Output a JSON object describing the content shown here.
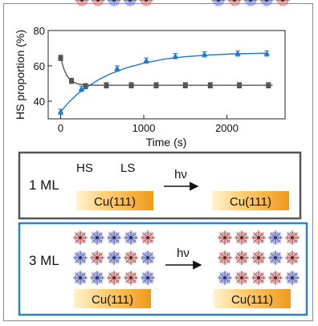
{
  "chart_data": {
    "type": "scatter",
    "xlabel": "Time (s)",
    "ylabel": "HS proportion (%)",
    "xticks": [
      "0",
      "1000",
      "2000"
    ],
    "yticks": [
      "40",
      "60",
      "80"
    ],
    "xlim": [
      -150,
      2700
    ],
    "ylim": [
      30,
      80
    ],
    "series": [
      {
        "name": "",
        "color": "#555555",
        "marker": "square",
        "points": [
          {
            "x": 0,
            "y": 64.5,
            "err": 1.5
          },
          {
            "x": 130,
            "y": 51.5,
            "err": 1.5
          },
          {
            "x": 300,
            "y": 48.5,
            "err": 1.5
          },
          {
            "x": 550,
            "y": 49,
            "err": 1.5
          },
          {
            "x": 850,
            "y": 49,
            "err": 1.5
          },
          {
            "x": 1150,
            "y": 49,
            "err": 1.5
          },
          {
            "x": 1500,
            "y": 49,
            "err": 1.5
          },
          {
            "x": 1800,
            "y": 49,
            "err": 1.5
          },
          {
            "x": 2150,
            "y": 49,
            "err": 1.5
          },
          {
            "x": 2500,
            "y": 49,
            "err": 1.5
          }
        ],
        "fit": [
          [
            0,
            64.5
          ],
          [
            40,
            58
          ],
          [
            80,
            54
          ],
          [
            130,
            51.5
          ],
          [
            200,
            49.8
          ],
          [
            300,
            49.1
          ],
          [
            500,
            49
          ],
          [
            2550,
            49
          ]
        ]
      },
      {
        "name": "",
        "color": "#1f77d0",
        "marker": "triangle",
        "points": [
          {
            "x": 0,
            "y": 34,
            "err": 1.5
          },
          {
            "x": 250,
            "y": 47,
            "err": 1.5
          },
          {
            "x": 680,
            "y": 58.5,
            "err": 1.5
          },
          {
            "x": 1030,
            "y": 63,
            "err": 1.5
          },
          {
            "x": 1380,
            "y": 65.5,
            "err": 1.5
          },
          {
            "x": 1730,
            "y": 66.5,
            "err": 1.5
          },
          {
            "x": 2130,
            "y": 67,
            "err": 1.5
          },
          {
            "x": 2480,
            "y": 67,
            "err": 1.5
          }
        ],
        "fit": [
          [
            0,
            34
          ],
          [
            100,
            39.5
          ],
          [
            200,
            44
          ],
          [
            300,
            47.5
          ],
          [
            450,
            52
          ],
          [
            600,
            55.5
          ],
          [
            800,
            59
          ],
          [
            1000,
            61.5
          ],
          [
            1250,
            63.8
          ],
          [
            1500,
            65.2
          ],
          [
            1800,
            66.2
          ],
          [
            2100,
            66.8
          ],
          [
            2500,
            67.2
          ]
        ]
      }
    ]
  },
  "panels": {
    "one_ml": {
      "layer_label": "1 ML",
      "hs_label": "HS",
      "ls_label": "LS",
      "arrow_label": "hν",
      "substrate_label": "Cu(111)",
      "frame_color": "#555555",
      "before_spins": [
        [
          "HS",
          "HS",
          "LS",
          "LS",
          "HS"
        ]
      ],
      "after_spins": [
        [
          "LS",
          "HS",
          "LS",
          "LS",
          "HS"
        ]
      ]
    },
    "three_ml": {
      "layer_label": "3 ML",
      "arrow_label": "hν",
      "substrate_label": "Cu(111)",
      "frame_color": "#2f7fd6",
      "before_spins": [
        [
          "HS",
          "LS",
          "LS",
          "LS",
          "HS"
        ],
        [
          "LS",
          "HS",
          "LS",
          "HS",
          "LS"
        ],
        [
          "LS",
          "LS",
          "HS",
          "HS",
          "LS"
        ]
      ],
      "after_spins": [
        [
          "HS",
          "HS",
          "HS",
          "LS",
          "HS"
        ],
        [
          "HS",
          "HS",
          "HS",
          "LS",
          "HS"
        ],
        [
          "LS",
          "HS",
          "HS",
          "HS",
          "LS"
        ]
      ]
    }
  },
  "colors": {
    "hs_glow": "#ff4b4b",
    "ls_glow": "#3f57ff",
    "substrate_light": "#ffe8b0",
    "substrate_dark": "#f0a020"
  }
}
